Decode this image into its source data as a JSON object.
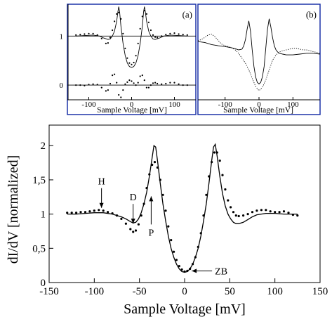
{
  "chart_data": [
    {
      "id": "main",
      "type": "line",
      "xlabel": "Sample Voltage [mV]",
      "ylabel": "dI/dV [normalized]",
      "xlim": [
        -150,
        150
      ],
      "ylim": [
        0,
        2.3
      ],
      "xticks": [
        -150,
        -100,
        -50,
        0,
        50,
        100,
        150
      ],
      "xtick_labels": [
        "-150",
        "-100",
        "-50",
        "0",
        "50",
        "100",
        "150"
      ],
      "yticks": [
        0,
        0.5,
        1,
        1.5,
        2
      ],
      "ytick_labels": [
        "0",
        "0,5",
        "1",
        "1,5",
        "2"
      ],
      "grid": false,
      "series": [
        {
          "style": "dots",
          "x": [
            -130,
            -125,
            -120,
            -115,
            -110,
            -105,
            -100,
            -95,
            -90,
            -85,
            -80,
            -75,
            -70,
            -65,
            -60,
            -57,
            -54,
            -51,
            -48,
            -45,
            -42,
            -39,
            -36,
            -33,
            -30,
            -27,
            -24,
            -21,
            -18,
            -15,
            -12,
            -9,
            -6,
            -3,
            0,
            3,
            6,
            9,
            12,
            15,
            18,
            21,
            24,
            27,
            30,
            33,
            36,
            39,
            42,
            45,
            48,
            51,
            54,
            57,
            60,
            65,
            70,
            75,
            80,
            85,
            90,
            95,
            100,
            105,
            110,
            115,
            120,
            125
          ],
          "y": [
            1.02,
            1.02,
            1.02,
            1.03,
            1.03,
            1.04,
            1.05,
            1.06,
            1.05,
            1.03,
            1.01,
            0.98,
            0.93,
            0.86,
            0.78,
            0.74,
            0.76,
            0.85,
            0.98,
            1.15,
            1.38,
            1.58,
            1.72,
            1.76,
            1.68,
            1.5,
            1.28,
            1.05,
            0.82,
            0.62,
            0.45,
            0.33,
            0.24,
            0.19,
            0.16,
            0.17,
            0.2,
            0.27,
            0.37,
            0.52,
            0.72,
            0.98,
            1.28,
            1.55,
            1.76,
            1.9,
            1.9,
            1.78,
            1.57,
            1.36,
            1.2,
            1.1,
            1.03,
            0.98,
            0.97,
            0.98,
            1.0,
            1.03,
            1.05,
            1.06,
            1.06,
            1.04,
            1.03,
            1.03,
            1.04,
            1.02,
            0.99,
            0.98
          ]
        },
        {
          "style": "solid",
          "x": [
            -130,
            -120,
            -110,
            -100,
            -90,
            -80,
            -75,
            -70,
            -65,
            -60,
            -57,
            -54,
            -51,
            -48,
            -45,
            -42,
            -39,
            -36,
            -34,
            -32,
            -30,
            -27,
            -24,
            -21,
            -18,
            -15,
            -12,
            -9,
            -6,
            -3,
            0,
            3,
            6,
            9,
            12,
            15,
            18,
            21,
            24,
            27,
            30,
            32,
            34,
            36,
            39,
            42,
            45,
            48,
            51,
            54,
            57,
            60,
            65,
            70,
            75,
            80,
            90,
            100,
            110,
            120,
            125
          ],
          "y": [
            1.0,
            1.0,
            1.01,
            1.02,
            1.02,
            1.0,
            0.98,
            0.96,
            0.93,
            0.89,
            0.87,
            0.88,
            0.93,
            1.02,
            1.15,
            1.32,
            1.55,
            1.82,
            2.0,
            1.98,
            1.78,
            1.45,
            1.15,
            0.9,
            0.68,
            0.5,
            0.37,
            0.27,
            0.2,
            0.16,
            0.15,
            0.16,
            0.2,
            0.27,
            0.37,
            0.5,
            0.68,
            0.9,
            1.15,
            1.45,
            1.78,
            1.98,
            2.02,
            1.85,
            1.55,
            1.3,
            1.12,
            1.0,
            0.93,
            0.88,
            0.86,
            0.86,
            0.88,
            0.92,
            0.96,
            0.99,
            1.01,
            1.01,
            1.0,
            1.0,
            1.0
          ]
        }
      ],
      "annotations": [
        {
          "text": "H",
          "x": -92,
          "y": 1.05,
          "direction": "down"
        },
        {
          "text": "D",
          "x": -57,
          "y": 0.82,
          "direction": "down"
        },
        {
          "text": "P",
          "x": -37,
          "y": 1.3,
          "direction": "up"
        },
        {
          "text": "ZB",
          "x": 4,
          "y": 0.17,
          "direction": "left"
        }
      ]
    },
    {
      "id": "inset-a",
      "type": "line",
      "panel_label": "(a)",
      "xlabel": "Sample Voltage [mV]",
      "xlim": [
        -150,
        150
      ],
      "ylim": [
        -0.3,
        1.65
      ],
      "xticks": [
        -100,
        0,
        100
      ],
      "xtick_labels": [
        "-100",
        "0",
        "100"
      ],
      "yticks": [
        0,
        1
      ],
      "ytick_labels": [
        "0",
        "1"
      ],
      "reference_lines": [
        0,
        1
      ],
      "series": [
        {
          "style": "dots",
          "x": [
            -130,
            -120,
            -110,
            -100,
            -90,
            -80,
            -70,
            -60,
            -55,
            -50,
            -45,
            -40,
            -35,
            -30,
            -25,
            -20,
            -15,
            -10,
            -5,
            0,
            5,
            10,
            15,
            20,
            25,
            30,
            35,
            40,
            45,
            50,
            55,
            60,
            70,
            80,
            90,
            100,
            110,
            120,
            130
          ],
          "y": [
            1.02,
            1.03,
            1.04,
            1.05,
            1.05,
            1.02,
            0.95,
            0.85,
            0.86,
            0.97,
            1.12,
            1.3,
            1.45,
            1.48,
            1.35,
            1.05,
            0.75,
            0.55,
            0.45,
            0.42,
            0.46,
            0.6,
            0.85,
            1.15,
            1.4,
            1.52,
            1.45,
            1.28,
            1.12,
            1.02,
            0.98,
            0.97,
            1.0,
            1.03,
            1.05,
            1.06,
            1.04,
            1.03,
            1.02
          ]
        },
        {
          "style": "solid",
          "x": [
            -130,
            -110,
            -90,
            -75,
            -65,
            -55,
            -50,
            -45,
            -40,
            -35,
            -32,
            -30,
            -28,
            -25,
            -20,
            -15,
            -10,
            -5,
            0,
            5,
            10,
            15,
            20,
            25,
            28,
            30,
            32,
            35,
            40,
            45,
            50,
            55,
            65,
            75,
            90,
            110,
            130
          ],
          "y": [
            1.0,
            1.01,
            1.02,
            1.0,
            0.96,
            0.93,
            0.94,
            1.0,
            1.1,
            1.3,
            1.5,
            1.6,
            1.5,
            1.2,
            0.85,
            0.6,
            0.45,
            0.38,
            0.36,
            0.38,
            0.45,
            0.6,
            0.85,
            1.2,
            1.5,
            1.6,
            1.5,
            1.3,
            1.1,
            1.0,
            0.94,
            0.93,
            0.96,
            1.0,
            1.02,
            1.01,
            1.0
          ]
        },
        {
          "style": "dots",
          "x": [
            -130,
            -120,
            -110,
            -100,
            -90,
            -80,
            -70,
            -60,
            -55,
            -50,
            -45,
            -40,
            -35,
            -30,
            -25,
            -20,
            -15,
            -10,
            -5,
            0,
            5,
            10,
            15,
            20,
            25,
            30,
            35,
            40,
            45,
            50,
            55,
            60,
            70,
            80,
            90,
            100,
            110,
            120,
            130
          ],
          "y": [
            0.0,
            0.0,
            -0.01,
            0.01,
            0.02,
            0.01,
            -0.05,
            -0.12,
            -0.1,
            0.03,
            0.2,
            0.22,
            0.05,
            -0.2,
            -0.25,
            -0.1,
            0.02,
            0.06,
            0.1,
            0.08,
            0.04,
            0.0,
            0.05,
            0.18,
            0.2,
            0.1,
            -0.05,
            -0.05,
            0.0,
            0.04,
            0.05,
            0.03,
            0.02,
            0.03,
            0.05,
            0.05,
            0.02,
            0.0,
            0.0
          ]
        }
      ]
    },
    {
      "id": "inset-b",
      "type": "line",
      "panel_label": "(b)",
      "xlabel": "Sample Voltage [mV]",
      "xlim": [
        -180,
        180
      ],
      "ylim": [
        0,
        2.3
      ],
      "xticks": [
        -100,
        0,
        100
      ],
      "xtick_labels": [
        "-100",
        "0",
        "100"
      ],
      "series": [
        {
          "style": "solid",
          "x": [
            -180,
            -160,
            -140,
            -120,
            -100,
            -80,
            -70,
            -60,
            -50,
            -45,
            -40,
            -35,
            -30,
            -25,
            -20,
            -15,
            -10,
            -5,
            0,
            5,
            10,
            15,
            20,
            25,
            30,
            35,
            40,
            45,
            50,
            55,
            60,
            70,
            80,
            100,
            120,
            140,
            160,
            180
          ],
          "y": [
            1.4,
            1.38,
            1.33,
            1.3,
            1.28,
            1.25,
            1.23,
            1.2,
            1.22,
            1.3,
            1.45,
            1.7,
            1.9,
            1.65,
            1.2,
            0.8,
            0.55,
            0.42,
            0.38,
            0.42,
            0.55,
            0.8,
            1.25,
            1.7,
            1.95,
            1.75,
            1.5,
            1.3,
            1.2,
            1.15,
            1.12,
            1.1,
            1.08,
            1.08,
            1.1,
            1.12,
            1.12,
            1.1
          ]
        },
        {
          "style": "dotted",
          "x": [
            -180,
            -170,
            -160,
            -150,
            -140,
            -130,
            -120,
            -110,
            -100,
            -90,
            -80,
            -70,
            -60,
            -50,
            -40,
            -30,
            -20,
            -10,
            0,
            10,
            20,
            30,
            40,
            50,
            60,
            70,
            80,
            90,
            100,
            110,
            120,
            130,
            140,
            150,
            160,
            170,
            180
          ],
          "y": [
            1.42,
            1.45,
            1.5,
            1.56,
            1.58,
            1.52,
            1.42,
            1.34,
            1.3,
            1.28,
            1.25,
            1.2,
            1.12,
            1.0,
            0.88,
            0.72,
            0.52,
            0.32,
            0.22,
            0.3,
            0.48,
            0.72,
            0.95,
            1.08,
            1.15,
            1.18,
            1.2,
            1.22,
            1.24,
            1.24,
            1.22,
            1.2,
            1.2,
            1.18,
            1.16,
            1.14,
            1.12
          ]
        }
      ]
    }
  ]
}
